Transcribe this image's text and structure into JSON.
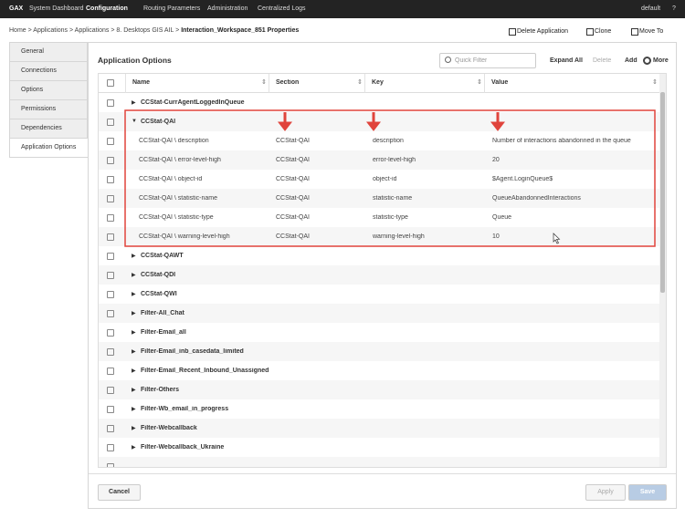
{
  "nav": {
    "brand": "GAX",
    "items": [
      "System Dashboard",
      "Configuration",
      "Routing Parameters",
      "Administration",
      "Centralized Logs"
    ],
    "active": 1,
    "user": "default",
    "help": "?"
  },
  "breadcrumb": {
    "items": [
      "Home",
      "Applications",
      "Applications",
      "8. Desktops GIS AIL",
      "Interaction_Workspace_851 Properties"
    ],
    "separator": ">"
  },
  "actions": [
    "Delete Application",
    "Clone",
    "Move To"
  ],
  "tabs": [
    "General",
    "Connections",
    "Options",
    "Permissions",
    "Dependencies",
    "Application Options"
  ],
  "active_tab": 5,
  "panel": {
    "title": "Application Options",
    "filter_placeholder": "Quick Filter",
    "buttons": [
      "Expand All",
      "Delete",
      "Add",
      "More"
    ]
  },
  "table": {
    "columns": [
      "Name",
      "Section",
      "Key",
      "Value"
    ],
    "rows": [
      {
        "name": "CCStat-CurrAgentLoggedInQueue"
      },
      {
        "name": "CCStat-QAI",
        "expanded": true
      },
      {
        "name": "CCStat-QAI \\ description",
        "section": "CCStat-QAI",
        "key": "description",
        "value": "Number of interactions abandonned in the queue"
      },
      {
        "name": "CCStat-QAI \\ error-level-high",
        "section": "CCStat-QAI",
        "key": "error-level-high",
        "value": "20"
      },
      {
        "name": "CCStat-QAI \\ object-id",
        "section": "CCStat-QAI",
        "key": "object-id",
        "value": "$Agent.LoginQueue$"
      },
      {
        "name": "CCStat-QAI \\ statistic-name",
        "section": "CCStat-QAI",
        "key": "statistic-name",
        "value": "QueueAbandonnedInteractions"
      },
      {
        "name": "CCStat-QAI \\ statistic-type",
        "section": "CCStat-QAI",
        "key": "statistic-type",
        "value": "Queue"
      },
      {
        "name": "CCStat-QAI \\ warning-level-high",
        "section": "CCStat-QAI",
        "key": "warning-level-high",
        "value": "10"
      },
      {
        "name": "CCStat-QAWT"
      },
      {
        "name": "CCStat-QDI"
      },
      {
        "name": "CCStat-QWI"
      },
      {
        "name": "Filter-All_Chat"
      },
      {
        "name": "Filter-Email_all"
      },
      {
        "name": "Filter-Email_inb_casedata_limited"
      },
      {
        "name": "Filter-Email_Recent_Inbound_Unassigned"
      },
      {
        "name": "Filter-Others"
      },
      {
        "name": "Filter-Wb_email_in_progress"
      },
      {
        "name": "Filter-Webcallback"
      },
      {
        "name": "Filter-Webcallback_Ukraine"
      }
    ]
  },
  "footer": [
    "Cancel",
    "Apply",
    "Save"
  ]
}
